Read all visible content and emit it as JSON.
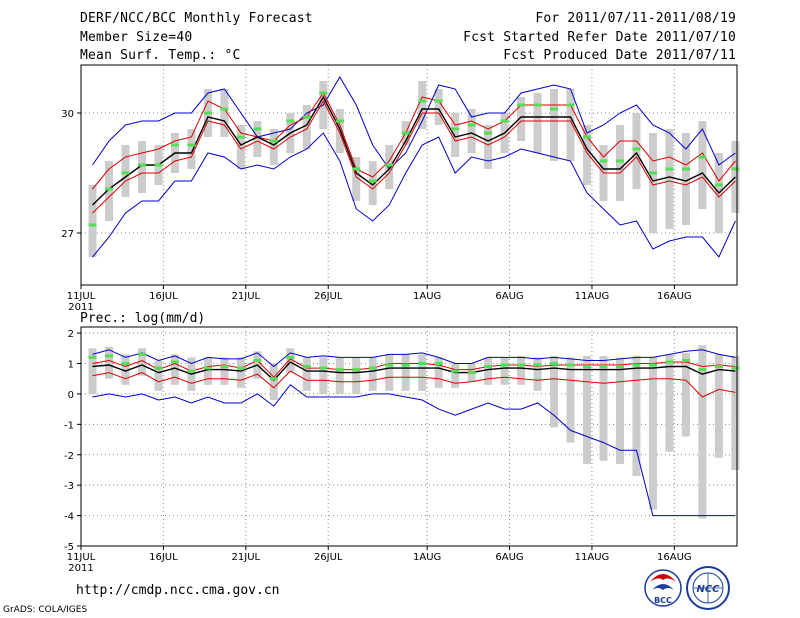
{
  "header": {
    "title": "DERF/NCC/BCC Monthly Forecast",
    "member_size": "Member Size=40",
    "variable": "Mean Surf. Temp.: °C",
    "period": "For 2011/07/11-2011/08/19",
    "started": "Fcst Started Refer Date 2011/07/10",
    "produced": "Fcst Produced Date 2011/07/11"
  },
  "footer": {
    "url": "http://cmdp.ncc.cma.gov.cn",
    "credit": "GrADS: COLA/IGES",
    "logo_bcc": "BCC",
    "logo_ncc": "NCC"
  },
  "colors": {
    "max_line": "#0000cc",
    "min_line": "#0000cc",
    "spread_lines": "#dd0000",
    "mean_line": "#000000",
    "box": "#cccccc",
    "median_tick": "#55dd55"
  },
  "chart_data": [
    {
      "type": "line",
      "title": "Mean Surf. Temp.: °C",
      "ylabel": "°C",
      "ylim": [
        25.7,
        31.2
      ],
      "yticks": [
        27,
        30
      ],
      "ytick_labels": [
        "27",
        "30"
      ],
      "xlim": [
        0,
        39.8
      ],
      "xticks": [
        0,
        5,
        10,
        15,
        21,
        26,
        31,
        36
      ],
      "xtick_labels": [
        "11JUL",
        "16JUL",
        "21JUL",
        "26JUL",
        "1AUG",
        "6AUG",
        "11AUG",
        "16AUG"
      ],
      "xtick_sublabels": [
        "2011",
        "",
        "",
        "",
        "",
        "",
        "",
        ""
      ],
      "grid": true,
      "series": [
        {
          "name": "max",
          "values": [
            28.7,
            29.3,
            29.7,
            29.8,
            29.8,
            30.0,
            30.0,
            30.5,
            30.6,
            30.0,
            29.4,
            29.5,
            29.6,
            30.0,
            30.2,
            30.9,
            30.2,
            29.2,
            28.6,
            29.0,
            29.8,
            30.7,
            30.6,
            29.9,
            30.0,
            30.0,
            30.5,
            30.6,
            30.7,
            30.6,
            29.5,
            29.7,
            30.0,
            30.2,
            29.7,
            29.5,
            29.1,
            29.6,
            28.7,
            29.0
          ]
        },
        {
          "name": "spread_high",
          "values": [
            28.1,
            28.6,
            28.9,
            29.0,
            29.1,
            29.3,
            29.4,
            30.3,
            30.1,
            29.5,
            29.4,
            29.3,
            29.7,
            29.9,
            30.5,
            29.7,
            28.6,
            28.4,
            28.8,
            29.5,
            30.4,
            30.3,
            29.7,
            29.8,
            29.6,
            29.8,
            30.2,
            30.2,
            30.2,
            30.2,
            29.4,
            28.9,
            29.3,
            29.3,
            28.8,
            28.9,
            28.7,
            29.0,
            28.3,
            28.8
          ]
        },
        {
          "name": "mean",
          "values": [
            27.7,
            28.1,
            28.4,
            28.7,
            28.7,
            29.0,
            29.0,
            29.9,
            29.8,
            29.2,
            29.4,
            29.2,
            29.5,
            29.7,
            30.4,
            29.6,
            28.5,
            28.2,
            28.6,
            29.3,
            30.1,
            30.1,
            29.4,
            29.5,
            29.3,
            29.5,
            29.9,
            29.9,
            29.9,
            29.9,
            29.1,
            28.6,
            28.6,
            29.0,
            28.3,
            28.4,
            28.3,
            28.5,
            28.0,
            28.4
          ]
        },
        {
          "name": "spread_low",
          "values": [
            27.5,
            27.9,
            28.3,
            28.5,
            28.5,
            28.8,
            28.9,
            29.8,
            29.7,
            29.1,
            29.3,
            29.1,
            29.4,
            29.6,
            30.3,
            29.5,
            28.4,
            28.1,
            28.5,
            29.2,
            30.0,
            30.0,
            29.3,
            29.4,
            29.2,
            29.4,
            29.8,
            29.8,
            29.8,
            29.8,
            29.0,
            28.5,
            28.5,
            28.9,
            28.2,
            28.3,
            28.2,
            28.4,
            27.9,
            28.3
          ]
        },
        {
          "name": "min",
          "values": [
            26.4,
            26.9,
            27.5,
            27.8,
            27.8,
            28.3,
            28.3,
            29.0,
            28.9,
            28.6,
            28.7,
            28.6,
            28.9,
            29.1,
            29.5,
            28.8,
            27.6,
            27.3,
            27.7,
            28.5,
            29.2,
            29.4,
            28.5,
            28.9,
            28.8,
            28.9,
            29.1,
            29.0,
            28.9,
            28.8,
            28.0,
            27.6,
            27.2,
            27.3,
            26.6,
            26.8,
            26.9,
            26.9,
            26.4,
            27.3
          ]
        },
        {
          "name": "median",
          "values": [
            27.2,
            28.1,
            28.5,
            28.7,
            28.7,
            29.2,
            29.2,
            30.0,
            30.1,
            29.4,
            29.6,
            29.3,
            29.8,
            29.9,
            30.5,
            29.8,
            28.6,
            28.3,
            28.7,
            29.5,
            30.3,
            30.3,
            29.6,
            29.7,
            29.5,
            29.8,
            30.2,
            30.2,
            30.1,
            30.2,
            29.4,
            28.8,
            28.8,
            29.1,
            28.5,
            28.6,
            28.6,
            28.9,
            28.2,
            28.6
          ]
        }
      ],
      "boxes": {
        "high": [
          28.2,
          28.8,
          29.2,
          29.3,
          29.2,
          29.5,
          29.6,
          30.6,
          30.6,
          29.7,
          29.8,
          29.6,
          30.0,
          30.2,
          30.8,
          30.1,
          28.9,
          28.8,
          29.2,
          29.8,
          30.8,
          30.6,
          30.0,
          30.1,
          29.7,
          30.0,
          30.4,
          30.5,
          30.6,
          30.6,
          29.7,
          29.2,
          29.7,
          30.0,
          29.5,
          29.6,
          29.5,
          29.8,
          29.0,
          29.3
        ],
        "low": [
          26.4,
          27.3,
          27.9,
          28.0,
          28.2,
          28.5,
          28.6,
          29.4,
          29.4,
          28.6,
          28.9,
          28.7,
          29.0,
          29.1,
          29.6,
          29.0,
          27.8,
          27.7,
          28.1,
          29.2,
          29.6,
          29.7,
          28.9,
          29.0,
          28.6,
          29.0,
          29.3,
          29.0,
          28.8,
          28.8,
          28.2,
          27.8,
          27.8,
          28.1,
          27.0,
          27.1,
          27.2,
          27.6,
          27.0,
          27.5
        ]
      }
    },
    {
      "type": "line",
      "title": "Prec.: log(mm/d)",
      "ylabel": "log(mm/d)",
      "ylim": [
        -5,
        2.2
      ],
      "yticks": [
        -5,
        -4,
        -3,
        -2,
        -1,
        0,
        1,
        2
      ],
      "ytick_labels": [
        "-5",
        "-4",
        "-3",
        "-2",
        "-1",
        "0",
        "1",
        "2"
      ],
      "xlim": [
        0,
        39.8
      ],
      "xticks": [
        0,
        5,
        10,
        15,
        21,
        26,
        31,
        36
      ],
      "xtick_labels": [
        "11JUL",
        "16JUL",
        "21JUL",
        "26JUL",
        "1AUG",
        "6AUG",
        "11AUG",
        "16AUG"
      ],
      "xtick_sublabels": [
        "2011",
        "",
        "",
        "",
        "",
        "",
        "",
        ""
      ],
      "grid": true,
      "series": [
        {
          "name": "max",
          "values": [
            1.3,
            1.45,
            1.2,
            1.35,
            1.1,
            1.25,
            1.0,
            1.2,
            1.15,
            1.15,
            1.35,
            0.9,
            1.35,
            1.2,
            1.25,
            1.2,
            1.2,
            1.2,
            1.3,
            1.3,
            1.35,
            1.2,
            1.0,
            1.0,
            1.2,
            1.2,
            1.2,
            1.15,
            1.2,
            1.15,
            1.1,
            1.1,
            1.15,
            1.2,
            1.2,
            1.3,
            1.4,
            1.45,
            1.3,
            1.2
          ]
        },
        {
          "name": "spread_high",
          "values": [
            1.0,
            1.1,
            0.9,
            1.1,
            0.8,
            1.0,
            0.75,
            0.9,
            0.95,
            0.85,
            1.1,
            0.55,
            1.15,
            0.85,
            0.85,
            0.8,
            0.8,
            0.85,
            1.0,
            1.0,
            1.0,
            0.95,
            0.8,
            0.8,
            0.9,
            0.95,
            0.95,
            0.9,
            0.95,
            0.95,
            0.95,
            0.95,
            0.95,
            1.0,
            1.0,
            1.05,
            1.05,
            0.9,
            0.95,
            0.9
          ]
        },
        {
          "name": "mean",
          "values": [
            0.9,
            0.95,
            0.75,
            0.95,
            0.7,
            0.85,
            0.65,
            0.8,
            0.8,
            0.75,
            0.95,
            0.45,
            1.05,
            0.75,
            0.75,
            0.7,
            0.7,
            0.75,
            0.85,
            0.85,
            0.85,
            0.85,
            0.7,
            0.7,
            0.8,
            0.85,
            0.85,
            0.8,
            0.85,
            0.8,
            0.8,
            0.8,
            0.8,
            0.85,
            0.85,
            0.9,
            0.9,
            0.65,
            0.8,
            0.75
          ]
        },
        {
          "name": "spread_low",
          "values": [
            0.6,
            0.7,
            0.5,
            0.7,
            0.4,
            0.55,
            0.35,
            0.5,
            0.5,
            0.45,
            0.65,
            0.2,
            0.75,
            0.45,
            0.45,
            0.4,
            0.4,
            0.45,
            0.55,
            0.55,
            0.55,
            0.5,
            0.35,
            0.4,
            0.5,
            0.55,
            0.5,
            0.45,
            0.5,
            0.45,
            0.4,
            0.35,
            0.4,
            0.45,
            0.5,
            0.5,
            0.45,
            -0.1,
            0.15,
            0.05
          ]
        },
        {
          "name": "min",
          "values": [
            -0.1,
            0.0,
            -0.1,
            0.0,
            -0.2,
            -0.1,
            -0.3,
            -0.1,
            -0.3,
            -0.3,
            0.0,
            -0.4,
            0.3,
            -0.1,
            -0.1,
            -0.1,
            -0.1,
            0.0,
            0.0,
            -0.1,
            -0.2,
            -0.5,
            -0.7,
            -0.5,
            -0.3,
            -0.5,
            -0.5,
            -0.3,
            -0.7,
            -1.2,
            -1.4,
            -1.6,
            -1.85,
            -1.85,
            -4.0,
            -4.0,
            -4.0,
            -4.0,
            -4.0,
            -4.0
          ]
        },
        {
          "name": "median",
          "values": [
            1.2,
            1.25,
            1.0,
            1.3,
            0.85,
            1.05,
            0.75,
            0.85,
            0.9,
            0.85,
            1.1,
            0.5,
            1.2,
            0.9,
            0.85,
            0.8,
            0.8,
            0.85,
            0.95,
            0.95,
            1.0,
            1.0,
            0.75,
            0.7,
            0.9,
            0.95,
            0.95,
            0.95,
            1.0,
            0.95,
            0.9,
            0.9,
            0.9,
            0.95,
            0.95,
            1.05,
            1.1,
            0.8,
            0.9,
            0.85
          ]
        }
      ],
      "boxes": {
        "high": [
          1.5,
          1.55,
          1.3,
          1.5,
          1.1,
          1.3,
          1.2,
          1.2,
          1.2,
          1.2,
          1.4,
          1.0,
          1.5,
          1.2,
          1.2,
          1.2,
          1.2,
          1.2,
          1.3,
          1.3,
          1.3,
          1.2,
          1.0,
          1.0,
          1.2,
          1.2,
          1.25,
          1.2,
          1.25,
          1.2,
          1.25,
          1.25,
          1.2,
          1.25,
          1.2,
          1.3,
          1.35,
          1.6,
          1.3,
          1.25
        ],
        "low": [
          0.0,
          0.5,
          0.3,
          0.6,
          0.1,
          0.3,
          0.1,
          0.3,
          0.3,
          0.2,
          0.5,
          -0.2,
          0.7,
          0.1,
          0.0,
          0.0,
          0.0,
          0.1,
          0.1,
          0.1,
          0.1,
          0.2,
          0.2,
          0.4,
          0.3,
          0.3,
          0.3,
          0.1,
          -1.1,
          -1.6,
          -2.3,
          -2.2,
          -2.3,
          -2.7,
          -3.8,
          -1.9,
          -1.4,
          -4.1,
          -2.1,
          -2.5
        ]
      }
    }
  ]
}
